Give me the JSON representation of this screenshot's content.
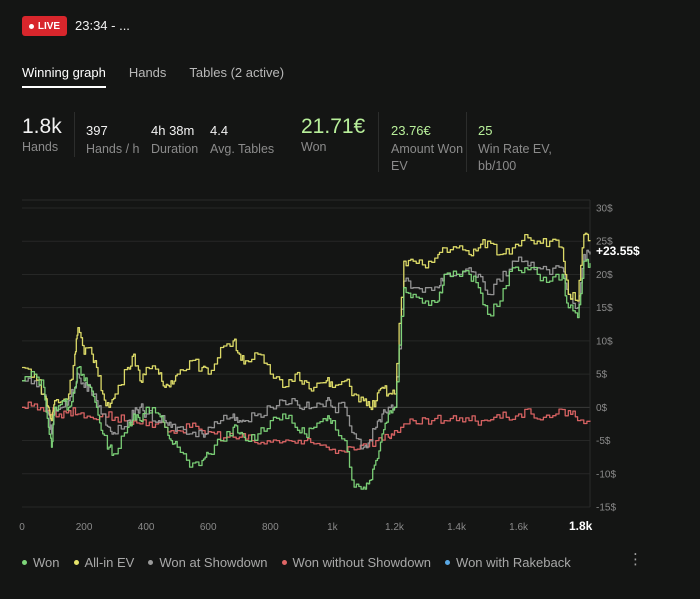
{
  "header": {
    "live_label": "LIVE",
    "session_time": "23:34 - ..."
  },
  "tabs": [
    {
      "label": "Winning graph",
      "active": true
    },
    {
      "label": "Hands",
      "active": false
    },
    {
      "label": "Tables (2 active)",
      "active": false
    }
  ],
  "stats": {
    "hands": {
      "value": "1.8k",
      "label": "Hands"
    },
    "hands_per_hour": {
      "value": "397",
      "label": "Hands / h"
    },
    "duration": {
      "value": "4h 38m",
      "label": "Duration"
    },
    "avg_tables": {
      "value": "4.4",
      "label": "Avg. Tables"
    },
    "won": {
      "value": "21.71€",
      "label": "Won"
    },
    "amount_won_ev": {
      "value": "23.76€",
      "label_line1": "Amount Won",
      "label_line2": "EV"
    },
    "win_rate_ev": {
      "value": "25",
      "label_line1": "Win Rate EV,",
      "label_line2": "bb/100"
    }
  },
  "chart_data": {
    "type": "line",
    "x_ticks": [
      "0",
      "200",
      "400",
      "600",
      "800",
      "1k",
      "1.2k",
      "1.4k",
      "1.6k",
      "1.8k"
    ],
    "y_ticks": [
      "30$",
      "25$",
      "20$",
      "15$",
      "10$",
      "5$",
      "0$",
      "-5$",
      "-10$",
      "-15$"
    ],
    "xlim": [
      0,
      1830
    ],
    "ylim": [
      -15,
      30
    ],
    "current_value_label": "+23.55$",
    "grid": true,
    "series": [
      {
        "name": "Won",
        "color": "#7ed67a",
        "points": [
          [
            0,
            4
          ],
          [
            40,
            5
          ],
          [
            70,
            3
          ],
          [
            85,
            -3
          ],
          [
            95,
            -6
          ],
          [
            105,
            0
          ],
          [
            130,
            1
          ],
          [
            150,
            0
          ],
          [
            170,
            3
          ],
          [
            180,
            6
          ],
          [
            200,
            4
          ],
          [
            220,
            3
          ],
          [
            240,
            0
          ],
          [
            260,
            -4
          ],
          [
            280,
            -6
          ],
          [
            300,
            -7
          ],
          [
            340,
            -3
          ],
          [
            360,
            -1
          ],
          [
            380,
            -2
          ],
          [
            400,
            0
          ],
          [
            440,
            -1
          ],
          [
            460,
            -3
          ],
          [
            480,
            -5
          ],
          [
            500,
            -6
          ],
          [
            540,
            -9
          ],
          [
            580,
            -8
          ],
          [
            600,
            -7
          ],
          [
            640,
            -5
          ],
          [
            680,
            -3
          ],
          [
            700,
            -4
          ],
          [
            720,
            -5
          ],
          [
            760,
            -4
          ],
          [
            800,
            -2
          ],
          [
            840,
            -1
          ],
          [
            880,
            -3
          ],
          [
            910,
            -4
          ],
          [
            940,
            -3
          ],
          [
            980,
            -2
          ],
          [
            1000,
            -2
          ],
          [
            1040,
            -5
          ],
          [
            1070,
            -12
          ],
          [
            1100,
            -12
          ],
          [
            1120,
            -11
          ],
          [
            1140,
            -8
          ],
          [
            1160,
            -4
          ],
          [
            1180,
            -1
          ],
          [
            1200,
            0
          ],
          [
            1230,
            18
          ],
          [
            1260,
            17
          ],
          [
            1300,
            16
          ],
          [
            1340,
            16
          ],
          [
            1360,
            20
          ],
          [
            1400,
            20
          ],
          [
            1440,
            20
          ],
          [
            1470,
            18
          ],
          [
            1500,
            14
          ],
          [
            1540,
            16
          ],
          [
            1580,
            21
          ],
          [
            1620,
            21
          ],
          [
            1660,
            20
          ],
          [
            1700,
            19
          ],
          [
            1740,
            20
          ],
          [
            1760,
            15
          ],
          [
            1790,
            13.5
          ],
          [
            1810,
            22
          ],
          [
            1830,
            21.7
          ]
        ]
      },
      {
        "name": "All-in EV",
        "color": "#e6e46b",
        "points": [
          [
            0,
            6
          ],
          [
            40,
            5
          ],
          [
            70,
            2
          ],
          [
            85,
            0
          ],
          [
            95,
            -2
          ],
          [
            105,
            1
          ],
          [
            130,
            1
          ],
          [
            150,
            2
          ],
          [
            170,
            8
          ],
          [
            180,
            12
          ],
          [
            200,
            8
          ],
          [
            220,
            9
          ],
          [
            240,
            6
          ],
          [
            260,
            2
          ],
          [
            280,
            0
          ],
          [
            300,
            2
          ],
          [
            340,
            6
          ],
          [
            360,
            8
          ],
          [
            380,
            4
          ],
          [
            400,
            6
          ],
          [
            440,
            5
          ],
          [
            460,
            3
          ],
          [
            480,
            4
          ],
          [
            500,
            5
          ],
          [
            540,
            7
          ],
          [
            580,
            6
          ],
          [
            600,
            5
          ],
          [
            640,
            9
          ],
          [
            680,
            10
          ],
          [
            700,
            8
          ],
          [
            720,
            7
          ],
          [
            760,
            8
          ],
          [
            800,
            5
          ],
          [
            840,
            3
          ],
          [
            880,
            5
          ],
          [
            910,
            4
          ],
          [
            940,
            3
          ],
          [
            980,
            4
          ],
          [
            1000,
            3
          ],
          [
            1040,
            4
          ],
          [
            1070,
            2
          ],
          [
            1100,
            1
          ],
          [
            1120,
            0
          ],
          [
            1140,
            1
          ],
          [
            1160,
            3
          ],
          [
            1180,
            2
          ],
          [
            1200,
            2
          ],
          [
            1230,
            22
          ],
          [
            1260,
            22
          ],
          [
            1300,
            21
          ],
          [
            1340,
            23
          ],
          [
            1360,
            24
          ],
          [
            1400,
            24
          ],
          [
            1440,
            23
          ],
          [
            1470,
            24
          ],
          [
            1500,
            25
          ],
          [
            1540,
            23
          ],
          [
            1580,
            24
          ],
          [
            1620,
            26
          ],
          [
            1660,
            25
          ],
          [
            1700,
            25
          ],
          [
            1740,
            24
          ],
          [
            1760,
            17
          ],
          [
            1790,
            16
          ],
          [
            1810,
            26
          ],
          [
            1830,
            25
          ]
        ]
      },
      {
        "name": "Won at Showdown",
        "color": "#9a9a9a",
        "points": [
          [
            0,
            4
          ],
          [
            40,
            4
          ],
          [
            70,
            2
          ],
          [
            85,
            -1
          ],
          [
            95,
            -4
          ],
          [
            105,
            0
          ],
          [
            130,
            0
          ],
          [
            150,
            1
          ],
          [
            170,
            3
          ],
          [
            180,
            5
          ],
          [
            200,
            3
          ],
          [
            220,
            3
          ],
          [
            240,
            1
          ],
          [
            260,
            -1
          ],
          [
            280,
            -3
          ],
          [
            300,
            -4
          ],
          [
            340,
            -2
          ],
          [
            360,
            -1
          ],
          [
            380,
            0
          ],
          [
            400,
            -1
          ],
          [
            440,
            -2
          ],
          [
            460,
            -2
          ],
          [
            480,
            -3
          ],
          [
            500,
            -3
          ],
          [
            540,
            -4
          ],
          [
            580,
            -4
          ],
          [
            600,
            -3
          ],
          [
            640,
            -2
          ],
          [
            680,
            -1
          ],
          [
            700,
            -2
          ],
          [
            720,
            -2
          ],
          [
            760,
            -1
          ],
          [
            800,
            0
          ],
          [
            840,
            1
          ],
          [
            880,
            1
          ],
          [
            910,
            0
          ],
          [
            940,
            0
          ],
          [
            980,
            1
          ],
          [
            1000,
            0
          ],
          [
            1040,
            0
          ],
          [
            1070,
            -4
          ],
          [
            1100,
            -6
          ],
          [
            1120,
            -5
          ],
          [
            1140,
            -3
          ],
          [
            1160,
            -1
          ],
          [
            1180,
            0
          ],
          [
            1200,
            0
          ],
          [
            1230,
            19
          ],
          [
            1260,
            18
          ],
          [
            1300,
            18
          ],
          [
            1340,
            18
          ],
          [
            1360,
            20
          ],
          [
            1400,
            20
          ],
          [
            1440,
            21
          ],
          [
            1470,
            20
          ],
          [
            1500,
            17
          ],
          [
            1540,
            19
          ],
          [
            1580,
            22
          ],
          [
            1620,
            22
          ],
          [
            1660,
            21
          ],
          [
            1700,
            20
          ],
          [
            1740,
            21
          ],
          [
            1760,
            17
          ],
          [
            1790,
            15
          ],
          [
            1810,
            23
          ],
          [
            1830,
            23
          ]
        ]
      },
      {
        "name": "Won without Showdown",
        "color": "#e06666",
        "points": [
          [
            0,
            0
          ],
          [
            40,
            0.5
          ],
          [
            80,
            -0.5
          ],
          [
            120,
            -1
          ],
          [
            150,
            -0.5
          ],
          [
            180,
            -1
          ],
          [
            220,
            -1.5
          ],
          [
            260,
            -1
          ],
          [
            300,
            -1.5
          ],
          [
            340,
            -2
          ],
          [
            380,
            -2.5
          ],
          [
            420,
            -3
          ],
          [
            460,
            -3
          ],
          [
            500,
            -3.5
          ],
          [
            540,
            -3
          ],
          [
            580,
            -3.5
          ],
          [
            620,
            -4
          ],
          [
            660,
            -4.5
          ],
          [
            700,
            -4.5
          ],
          [
            740,
            -5
          ],
          [
            780,
            -5.5
          ],
          [
            820,
            -5
          ],
          [
            860,
            -5
          ],
          [
            900,
            -5.5
          ],
          [
            940,
            -5.5
          ],
          [
            980,
            -6
          ],
          [
            1020,
            -6.5
          ],
          [
            1060,
            -6
          ],
          [
            1100,
            -5.5
          ],
          [
            1140,
            -5
          ],
          [
            1180,
            -4.5
          ],
          [
            1200,
            -3.5
          ],
          [
            1240,
            -2.5
          ],
          [
            1280,
            -2.5
          ],
          [
            1320,
            -2
          ],
          [
            1360,
            -2
          ],
          [
            1400,
            -2
          ],
          [
            1440,
            -2
          ],
          [
            1480,
            -2
          ],
          [
            1520,
            -1.5
          ],
          [
            1560,
            -1.5
          ],
          [
            1600,
            -1
          ],
          [
            1640,
            -1
          ],
          [
            1680,
            -1.5
          ],
          [
            1720,
            -1
          ],
          [
            1760,
            -0.5
          ],
          [
            1790,
            -2
          ],
          [
            1830,
            -2
          ]
        ]
      },
      {
        "name": "Won with Rakeback",
        "color": "#5aa9e6",
        "points": []
      }
    ]
  }
}
